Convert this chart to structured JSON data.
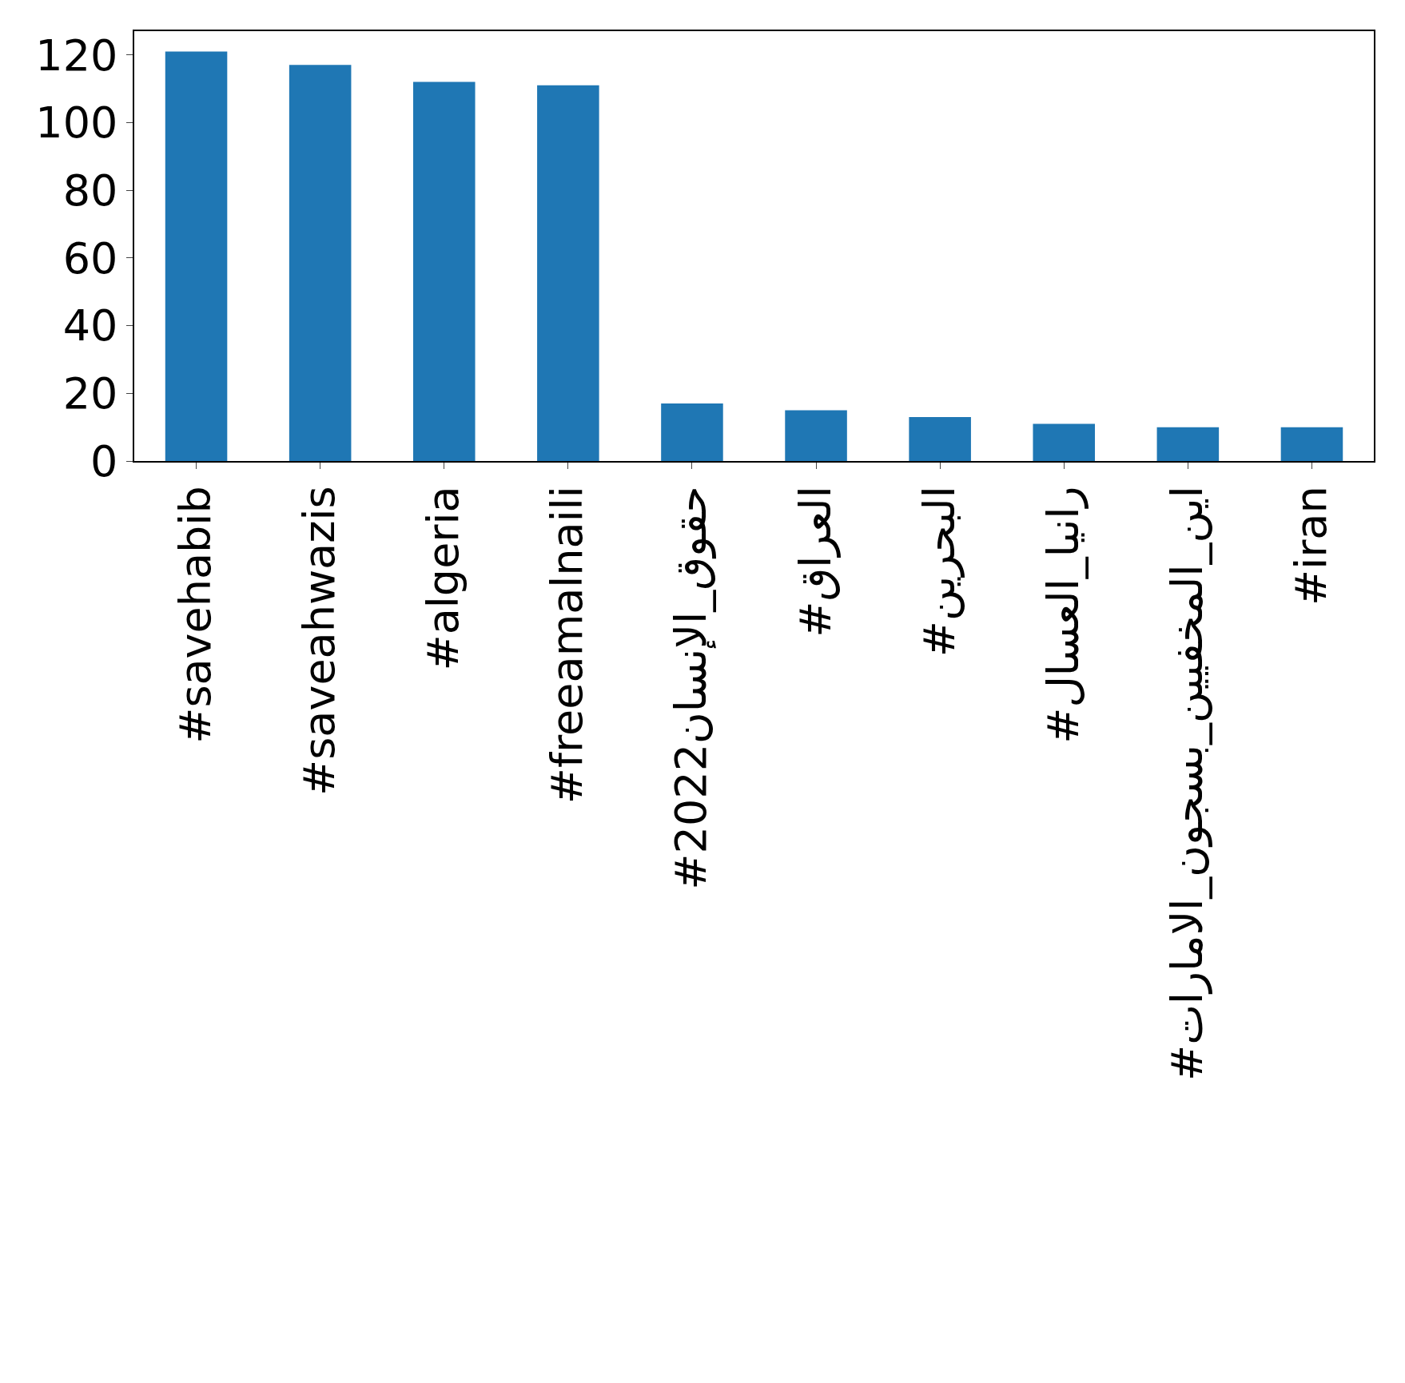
{
  "chart_data": {
    "type": "bar",
    "categories": [
      "#savehabib",
      "#saveahwazis",
      "#algeria",
      "#freeamalnaili",
      "#حقوق_الإنسان2022",
      "#العراق",
      "#البحرين",
      "#رانيا_العسال",
      "#اين_المخفيين_بسجون_الامارات",
      "#iran"
    ],
    "values": [
      121,
      117,
      112,
      111,
      17,
      15,
      13,
      11,
      10,
      10
    ],
    "color": "#1f77b4",
    "ylim": [
      0,
      127
    ],
    "yticks": [
      0,
      20,
      40,
      60,
      80,
      100,
      120
    ],
    "grid": false
  }
}
